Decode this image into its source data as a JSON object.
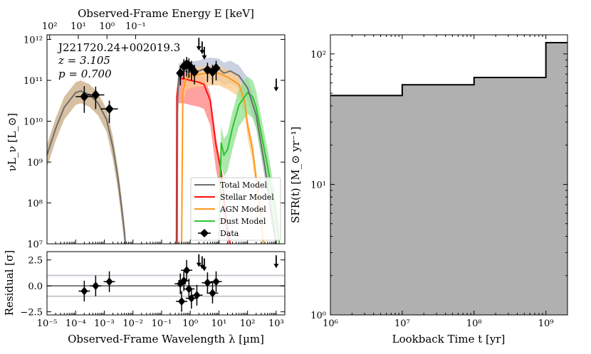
{
  "chart_data": [
    {
      "type": "line",
      "panel": "sed",
      "title": "Observed-Frame Energy E [keV]",
      "xlabel": "Observed-Frame Wavelength λ [µm]",
      "ylabel": "νL_ν [L_⊙]",
      "xscale": "log",
      "yscale": "log",
      "xlim": [
        1e-05,
        2000
      ],
      "ylim": [
        10000000.0,
        1300000000000.0
      ],
      "x_tick_labels": [
        "10⁻⁵",
        "10⁻⁴",
        "10⁻³",
        "10⁻²",
        "10⁻¹",
        "10⁰",
        "10¹",
        "10²",
        "10³"
      ],
      "y_tick_labels": [
        "10⁷",
        "10⁸",
        "10⁹",
        "10¹⁰",
        "10¹¹",
        "10¹²"
      ],
      "top_x_tick_labels": [
        "10²",
        "10¹",
        "10⁰",
        "10⁻¹"
      ],
      "annotations": [
        "J221720.24+002019.3",
        "z = 3.105",
        "p = 0.700"
      ],
      "legend": {
        "placement": "lower-right",
        "entries": [
          "Total Model",
          "Stellar Model",
          "AGN Model",
          "Dust Model",
          "Data"
        ]
      },
      "series": [
        {
          "name": "Total Model",
          "color": "#6e6e6e",
          "points": [
            [
              1e-05,
              1500000000.0
            ],
            [
              2e-05,
              6600000000.0
            ],
            [
              4e-05,
              22000000000.0
            ],
            [
              0.0001,
              50000000000.0
            ],
            [
              0.00015,
              55000000000.0
            ],
            [
              0.0003,
              45000000000.0
            ],
            [
              0.0006,
              28000000000.0
            ],
            [
              0.0012,
              11000000000.0
            ],
            [
              0.002,
              2300000000.0
            ],
            [
              0.003,
              400000000.0
            ],
            [
              0.004,
              80000000.0
            ],
            [
              0.005,
              20000000.0
            ],
            [
              0.0055,
              10000000.0
            ]
          ]
        },
        {
          "name": "Total Model",
          "color": "#6e6e6e",
          "points": [
            [
              0.35,
              10000000.0
            ],
            [
              0.36,
              30000000000.0
            ],
            [
              0.4,
              140000000000.0
            ],
            [
              0.6,
              170000000000.0
            ],
            [
              1,
              160000000000.0
            ],
            [
              2,
              170000000000.0
            ],
            [
              3,
              190000000000.0
            ],
            [
              5,
              200000000000.0
            ],
            [
              10,
              190000000000.0
            ],
            [
              15,
              150000000000.0
            ],
            [
              25,
              170000000000.0
            ],
            [
              50,
              130000000000.0
            ],
            [
              100,
              65000000000.0
            ],
            [
              200,
              14000000000.0
            ],
            [
              400,
              800000000.0
            ],
            [
              700,
              50000000.0
            ],
            [
              1000,
              10000000.0
            ]
          ]
        },
        {
          "name": "Stellar Model",
          "color": "#ff1010",
          "points": [
            [
              0.33,
              10000000.0
            ],
            [
              0.34,
              40000000000.0
            ],
            [
              0.4,
              110000000000.0
            ],
            [
              0.6,
              110000000000.0
            ],
            [
              1,
              100000000000.0
            ],
            [
              2,
              90000000000.0
            ],
            [
              3,
              80000000000.0
            ],
            [
              5,
              32000000000.0
            ],
            [
              8,
              2500000000.0
            ],
            [
              12,
              600000000.0
            ],
            [
              20,
              20000000.0
            ],
            [
              25,
              10000000.0
            ]
          ]
        },
        {
          "name": "AGN Model",
          "color": "#ff9a1a",
          "points": [
            [
              0.5,
              10000000.0
            ],
            [
              0.55,
              50000000000.0
            ],
            [
              0.7,
              110000000000.0
            ],
            [
              1,
              130000000000.0
            ],
            [
              2,
              140000000000.0
            ],
            [
              4,
              150000000000.0
            ],
            [
              10,
              150000000000.0
            ],
            [
              20,
              120000000000.0
            ],
            [
              50,
              80000000000.0
            ],
            [
              80,
              30000000000.0
            ],
            [
              100,
              8000000000.0
            ],
            [
              150,
              2000000000.0
            ],
            [
              200,
              400000000.0
            ],
            [
              300,
              50000000.0
            ],
            [
              350,
              10000000.0
            ]
          ]
        },
        {
          "name": "Dust Model",
          "color": "#2ec52e",
          "points": [
            [
              10,
              10000000.0
            ],
            [
              12,
              3000000000.0
            ],
            [
              15,
              1500000000.0
            ],
            [
              20,
              2000000000.0
            ],
            [
              25,
              4000000000.0
            ],
            [
              30,
              7000000000.0
            ],
            [
              50,
              25000000000.0
            ],
            [
              100,
              50000000000.0
            ],
            [
              150,
              40000000000.0
            ],
            [
              200,
              22000000000.0
            ],
            [
              300,
              5000000000.0
            ],
            [
              500,
              800000000.0
            ],
            [
              900,
              70000000.0
            ],
            [
              1300,
              10000000.0
            ]
          ]
        }
      ],
      "data_points": [
        {
          "x": 0.0002,
          "y": 40000000000.0,
          "x_err": 0.3,
          "y_err_lo": 0.75,
          "y_err_hi": 1.5
        },
        {
          "x": 0.0005,
          "y": 44000000000.0,
          "x_err": 0.3,
          "y_err_lo": 0.8,
          "y_err_hi": 1.3
        },
        {
          "x": 0.0015,
          "y": 20000000000.0,
          "x_err": 0.3,
          "y_err_lo": 0.8,
          "y_err_hi": 1.3
        },
        {
          "x": 0.45,
          "y": 150000000000.0,
          "x_err": 0.1,
          "y_err_lo": 0.85,
          "y_err_hi": 1.2
        },
        {
          "x": 0.6,
          "y": 220000000000.0,
          "x_err": 0.1,
          "y_err_lo": 0.85,
          "y_err_hi": 1.2
        },
        {
          "x": 0.75,
          "y": 250000000000.0,
          "x_err": 0.1,
          "y_err_lo": 0.85,
          "y_err_hi": 1.2
        },
        {
          "x": 0.9,
          "y": 230000000000.0,
          "x_err": 0.1,
          "y_err_lo": 0.85,
          "y_err_hi": 1.2
        },
        {
          "x": 1.1,
          "y": 200000000000.0,
          "x_err": 0.1,
          "y_err_lo": 0.85,
          "y_err_hi": 1.2
        },
        {
          "x": 1.4,
          "y": 160000000000.0,
          "x_err": 0.1,
          "y_err_lo": 0.85,
          "y_err_hi": 1.2
        },
        {
          "x": 4,
          "y": 180000000000.0,
          "x_err": 0.1,
          "y_err_lo": 0.85,
          "y_err_hi": 1.2
        },
        {
          "x": 6,
          "y": 160000000000.0,
          "x_err": 0.1,
          "y_err_lo": 0.85,
          "y_err_hi": 1.2
        },
        {
          "x": 8,
          "y": 200000000000.0,
          "x_err": 0.1,
          "y_err_lo": 0.85,
          "y_err_hi": 1.2
        }
      ],
      "upper_limits": [
        {
          "x": 2.0,
          "y": 800000000000.0
        },
        {
          "x": 2.6,
          "y": 650000000000.0
        },
        {
          "x": 3.1,
          "y": 480000000000.0
        },
        {
          "x": 1000,
          "y": 80000000000.0
        }
      ]
    },
    {
      "type": "scatter",
      "panel": "residual",
      "xlabel": "Observed-Frame Wavelength λ [µm]",
      "ylabel": "Residual [σ]",
      "xscale": "log",
      "xlim": [
        1e-05,
        2000
      ],
      "ylim": [
        -2.8,
        3.3
      ],
      "y_tick_labels": [
        "−2.5",
        "0.0",
        "2.5"
      ],
      "reference_lines": [
        -1,
        0,
        1
      ],
      "points": [
        {
          "x": 0.0002,
          "y": -0.5,
          "err": 1
        },
        {
          "x": 0.0005,
          "y": 0.0,
          "err": 1
        },
        {
          "x": 0.0015,
          "y": 0.4,
          "err": 1
        },
        {
          "x": 0.45,
          "y": 0.2,
          "err": 1
        },
        {
          "x": 0.5,
          "y": -1.5,
          "err": 1
        },
        {
          "x": 0.6,
          "y": 0.5,
          "err": 1
        },
        {
          "x": 0.75,
          "y": 1.5,
          "err": 1
        },
        {
          "x": 0.9,
          "y": -0.3,
          "err": 1
        },
        {
          "x": 1.1,
          "y": -1.2,
          "err": 1
        },
        {
          "x": 1.7,
          "y": -0.9,
          "err": 1
        },
        {
          "x": 4,
          "y": 0.3,
          "err": 1
        },
        {
          "x": 6,
          "y": -0.7,
          "err": 1
        },
        {
          "x": 8,
          "y": 0.4,
          "err": 1
        }
      ],
      "upper_limits": [
        {
          "x": 2.0,
          "y": 2.5
        },
        {
          "x": 2.6,
          "y": 2.3
        },
        {
          "x": 3.1,
          "y": 2.1
        },
        {
          "x": 1000,
          "y": 2.4
        }
      ]
    },
    {
      "type": "area",
      "panel": "sfh",
      "xlabel": "Lookback Time t [yr]",
      "ylabel": "SFR(t) [M_⊙ yr⁻¹]",
      "xscale": "log",
      "yscale": "log",
      "xlim": [
        1000000.0,
        2000000000.0
      ],
      "ylim": [
        1,
        140
      ],
      "x_tick_labels": [
        "10⁶",
        "10⁷",
        "10⁸",
        "10⁹"
      ],
      "y_tick_labels": [
        "10⁰",
        "10¹",
        "10²"
      ],
      "fill_color": "#b0b0b0",
      "steps": [
        {
          "from": 1000000.0,
          "to": 10000000.0,
          "sfr": 48
        },
        {
          "from": 10000000.0,
          "to": 100000000.0,
          "sfr": 58
        },
        {
          "from": 100000000.0,
          "to": 1000000000.0,
          "sfr": 66
        },
        {
          "from": 1000000000.0,
          "to": 2000000000.0,
          "sfr": 122
        }
      ]
    }
  ]
}
